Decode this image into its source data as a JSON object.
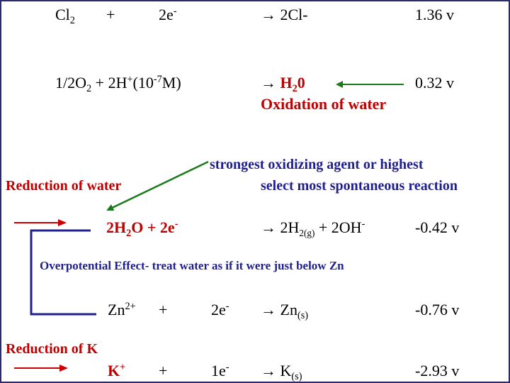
{
  "colors": {
    "red": "#c00000",
    "navy": "#1f1f8f",
    "arrow_green": "#1a7a1a",
    "arrow_red": "#cc0000",
    "bracket_navy": "#1f1f8f"
  },
  "rows": {
    "cl2": {
      "reactant": "Cl",
      "reactant_sub": "2",
      "plus": "+",
      "electrons": "2e",
      "electrons_sup": "-",
      "product": "→ 2Cl-",
      "potential": "1.36 v"
    },
    "oxygen": {
      "reactant_prefix": "1/2O",
      "reactant_sub": "2",
      "reactant_mid": "+ 2H",
      "h_sup": "+",
      "conc_prefix": "(10",
      "conc_sup": "-7",
      "conc_suffix": "M)",
      "product_arrow": "→",
      "product_prefix": "H",
      "product_sub": "2",
      "product_suffix": "0",
      "product_note": "Oxidation of water",
      "potential": "0.32 v"
    },
    "water": {
      "reactant_prefix": "2H",
      "reactant_sub": "2",
      "reactant_suffix": "O + 2e",
      "electrons_sup": "-",
      "product_prefix": "→ 2H",
      "product_sub": "2(g)",
      "product_mid": "+ 2OH",
      "oh_sup": "-",
      "potential": "-0.42 v"
    },
    "zinc": {
      "reactant": "Zn",
      "reactant_sup": "2+",
      "plus": "+",
      "electrons": "2e",
      "electrons_sup": "-",
      "product_prefix": "→ Zn",
      "product_sub": "(s)",
      "potential": "-0.76 v"
    },
    "potassium": {
      "reactant": "K",
      "reactant_sup": "+",
      "plus": "+",
      "electrons": "1e",
      "electrons_sup": "-",
      "product_prefix": "→ K",
      "product_sub": "(s)",
      "potential": "-2.93 v"
    }
  },
  "annotations": {
    "strongest": "strongest oxidizing agent or highest",
    "spontaneous": "select most spontaneous reaction",
    "reduction_water": "Reduction of water",
    "overpotential": "Overpotential Effect- treat water as if it were just below Zn",
    "reduction_k": "Reduction of K"
  }
}
